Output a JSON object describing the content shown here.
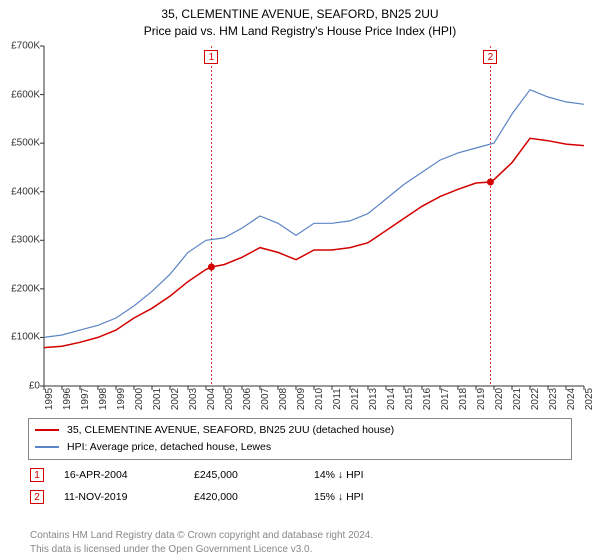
{
  "header": {
    "line1": "35, CLEMENTINE AVENUE, SEAFORD, BN25 2UU",
    "line2": "Price paid vs. HM Land Registry's House Price Index (HPI)"
  },
  "chart": {
    "type": "line",
    "background_color": "#ffffff",
    "axis_color": "#333333",
    "label_fontsize": 10,
    "title_fontsize": 12,
    "x": {
      "min": 1995,
      "max": 2025,
      "ticks": [
        1995,
        1996,
        1997,
        1998,
        1999,
        2000,
        2001,
        2002,
        2003,
        2004,
        2005,
        2006,
        2007,
        2008,
        2009,
        2010,
        2011,
        2012,
        2013,
        2014,
        2015,
        2016,
        2017,
        2018,
        2019,
        2020,
        2021,
        2022,
        2023,
        2024,
        2025
      ]
    },
    "y": {
      "min": 0,
      "max": 700000,
      "ticks": [
        0,
        100000,
        200000,
        300000,
        400000,
        500000,
        600000,
        700000
      ],
      "tick_labels": [
        "£0",
        "£100K",
        "£200K",
        "£300K",
        "£400K",
        "£500K",
        "£600K",
        "£700K"
      ]
    },
    "series": [
      {
        "id": "property",
        "label": "35, CLEMENTINE AVENUE, SEAFORD, BN25 2UU (detached house)",
        "color": "#d40000",
        "line_width": 1.5,
        "x": [
          1995,
          1996,
          1997,
          1998,
          1999,
          2000,
          2001,
          2002,
          2003,
          2004,
          2004.3,
          2005,
          2006,
          2007,
          2008,
          2009,
          2010,
          2011,
          2012,
          2013,
          2014,
          2015,
          2016,
          2017,
          2018,
          2019,
          2019.8,
          2020,
          2021,
          2022,
          2023,
          2024,
          2025
        ],
        "y": [
          79000,
          82000,
          90000,
          100000,
          115000,
          140000,
          160000,
          185000,
          215000,
          240000,
          245000,
          250000,
          265000,
          285000,
          275000,
          260000,
          280000,
          280000,
          285000,
          295000,
          320000,
          345000,
          370000,
          390000,
          405000,
          418000,
          420000,
          425000,
          460000,
          510000,
          505000,
          498000,
          495000
        ]
      },
      {
        "id": "hpi",
        "label": "HPI: Average price, detached house, Lewes",
        "color": "#5b84c4",
        "line_width": 1.2,
        "x": [
          1995,
          1996,
          1997,
          1998,
          1999,
          2000,
          2001,
          2002,
          2003,
          2004,
          2005,
          2006,
          2007,
          2008,
          2009,
          2010,
          2011,
          2012,
          2013,
          2014,
          2015,
          2016,
          2017,
          2018,
          2019,
          2020,
          2021,
          2022,
          2023,
          2024,
          2025
        ],
        "y": [
          100000,
          105000,
          115000,
          125000,
          140000,
          165000,
          195000,
          230000,
          275000,
          300000,
          305000,
          325000,
          350000,
          335000,
          310000,
          335000,
          335000,
          340000,
          355000,
          385000,
          415000,
          440000,
          465000,
          480000,
          490000,
          500000,
          560000,
          610000,
          595000,
          585000,
          580000
        ]
      }
    ],
    "sale_markers": [
      {
        "n": "1",
        "x": 2004.3,
        "y": 245000,
        "color": "#d40000"
      },
      {
        "n": "2",
        "x": 2019.8,
        "y": 420000,
        "color": "#d40000"
      }
    ],
    "sale_verticals": [
      {
        "x": 2004.3,
        "color": "#d40000",
        "dash": "2 2"
      },
      {
        "x": 2019.8,
        "color": "#d40000",
        "dash": "2 2"
      }
    ],
    "sale_labels": [
      {
        "n": "1",
        "x": 2004.3
      },
      {
        "n": "2",
        "x": 2019.8
      }
    ]
  },
  "legend": {
    "property_label": "35, CLEMENTINE AVENUE, SEAFORD, BN25 2UU (detached house)",
    "hpi_label": "HPI: Average price, detached house, Lewes"
  },
  "sales_table": [
    {
      "n": "1",
      "date": "16-APR-2004",
      "price": "£245,000",
      "delta": "14% ↓ HPI"
    },
    {
      "n": "2",
      "date": "11-NOV-2019",
      "price": "£420,000",
      "delta": "15% ↓ HPI"
    }
  ],
  "footer": {
    "line1": "Contains HM Land Registry data © Crown copyright and database right 2024.",
    "line2": "This data is licensed under the Open Government Licence v3.0."
  },
  "colors": {
    "property": "#d40000",
    "hpi": "#5b84c4",
    "footer_text": "#888888"
  }
}
